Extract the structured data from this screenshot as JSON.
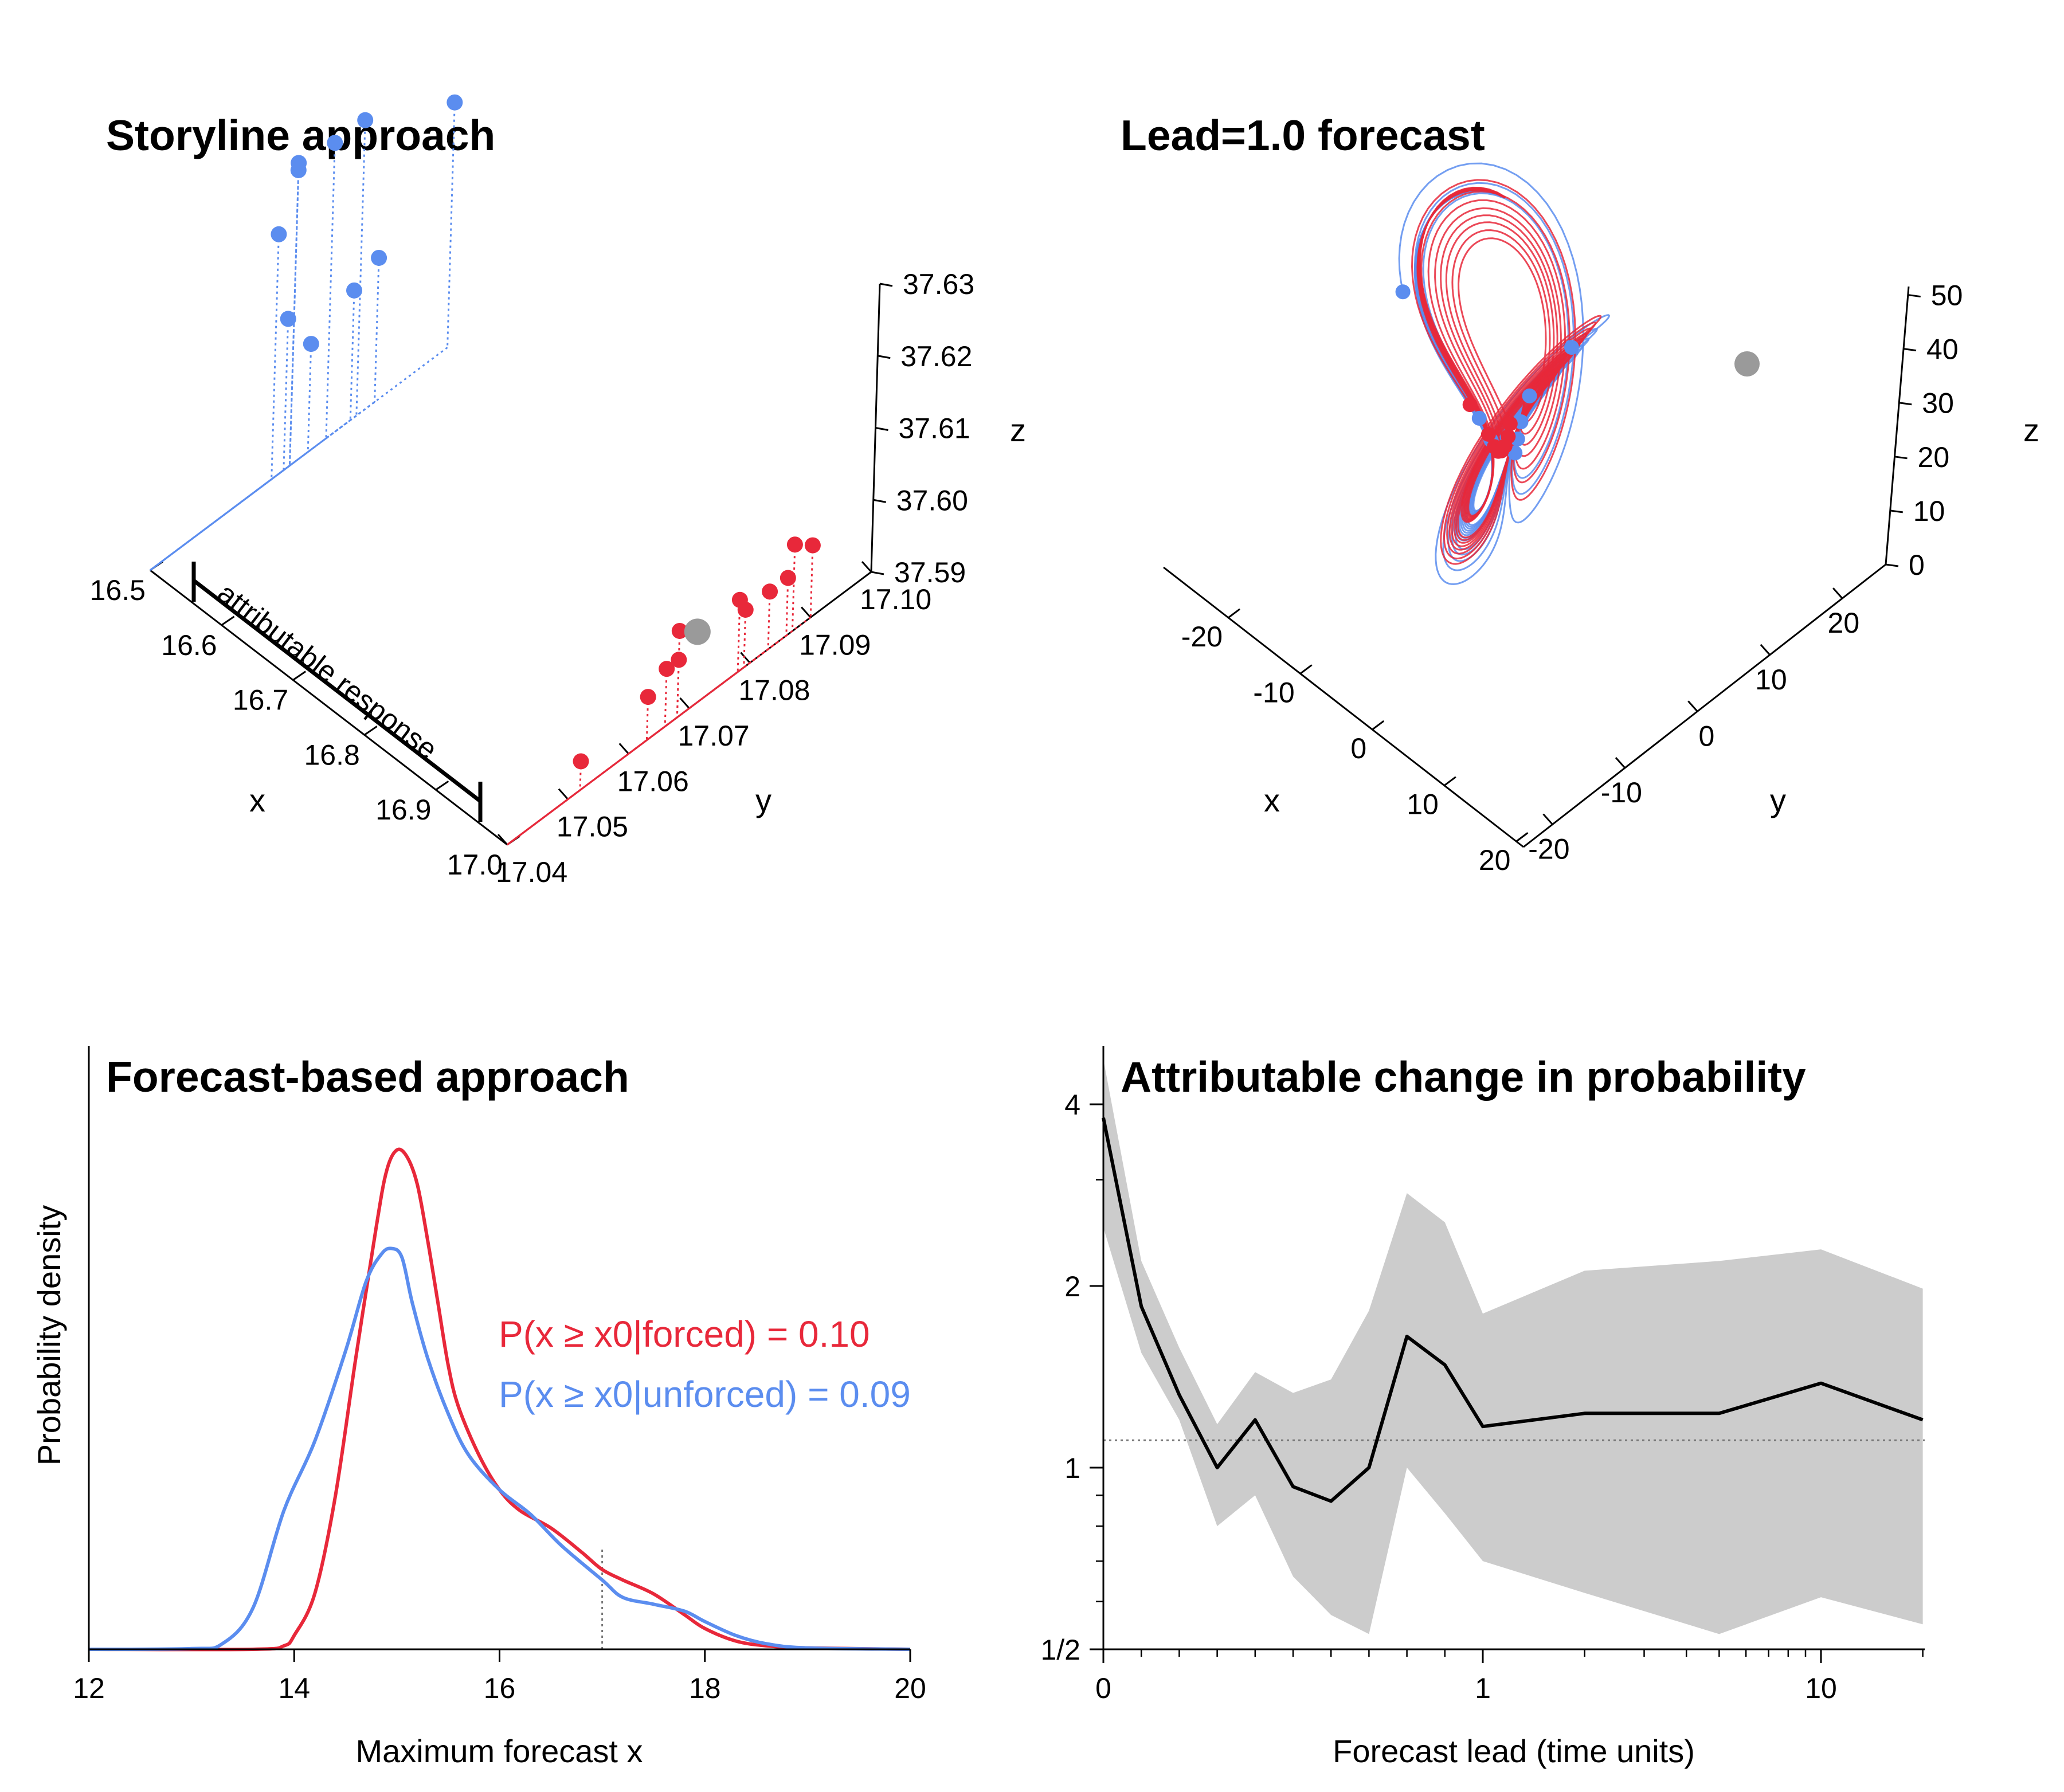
{
  "colors": {
    "forced": "#e8283a",
    "unforced": "#5b8def",
    "initial": "#9a9a9a",
    "band": "#cccccc",
    "line": "#000000"
  },
  "chart_data": [
    {
      "type": "scatter",
      "title": "Storyline approach",
      "projection": "3d",
      "xlabel": "x",
      "ylabel": "y",
      "zlabel": "z",
      "xticks": [
        "16.5",
        "16.6",
        "16.7",
        "16.8",
        "16.9",
        "17.0"
      ],
      "yticks": [
        "17.04",
        "17.05",
        "17.06",
        "17.07",
        "17.08",
        "17.09",
        "17.10"
      ],
      "zticks": [
        "37.59",
        "37.60",
        "37.61",
        "37.62",
        "37.63"
      ],
      "xlim": [
        16.5,
        17.0
      ],
      "ylim": [
        17.04,
        17.1
      ],
      "zlim": [
        37.59,
        37.63
      ],
      "annotation": "attributable response",
      "series": [
        {
          "name": "unforced",
          "color": "unforced",
          "points": [
            {
              "x": 16.5,
              "y": 17.06,
              "z": 37.624
            },
            {
              "x": 16.5,
              "y": 17.063,
              "z": 37.631
            },
            {
              "x": 16.5,
              "y": 17.063,
              "z": 37.632
            },
            {
              "x": 16.5,
              "y": 17.069,
              "z": 37.631
            },
            {
              "x": 16.5,
              "y": 17.074,
              "z": 37.631
            },
            {
              "x": 16.5,
              "y": 17.089,
              "z": 37.624
            },
            {
              "x": 16.5,
              "y": 17.062,
              "z": 37.611
            },
            {
              "x": 16.5,
              "y": 17.066,
              "z": 37.605
            },
            {
              "x": 16.5,
              "y": 17.073,
              "z": 37.608
            },
            {
              "x": 16.5,
              "y": 17.077,
              "z": 37.61
            }
          ]
        },
        {
          "name": "forced",
          "color": "forced",
          "points": [
            {
              "x": 17.0,
              "y": 17.052,
              "z": 37.594
            },
            {
              "x": 17.0,
              "y": 17.063,
              "z": 37.596
            },
            {
              "x": 17.0,
              "y": 17.066,
              "z": 37.598
            },
            {
              "x": 17.0,
              "y": 17.068,
              "z": 37.598
            },
            {
              "x": 17.0,
              "y": 17.068,
              "z": 37.602
            },
            {
              "x": 17.0,
              "y": 17.078,
              "z": 37.6
            },
            {
              "x": 17.0,
              "y": 17.079,
              "z": 37.598
            },
            {
              "x": 17.0,
              "y": 17.083,
              "z": 37.598
            },
            {
              "x": 17.0,
              "y": 17.087,
              "z": 37.602
            },
            {
              "x": 17.0,
              "y": 17.09,
              "z": 37.6
            },
            {
              "x": 17.0,
              "y": 17.086,
              "z": 37.598
            }
          ]
        },
        {
          "name": "initial",
          "color": "initial",
          "points": [
            {
              "x": 17.0,
              "y": 17.071,
              "z": 37.6
            }
          ]
        }
      ]
    },
    {
      "type": "line",
      "title": "Lead=1.0 forecast",
      "projection": "3d",
      "xlabel": "x",
      "ylabel": "y",
      "zlabel": "z",
      "xticks": [
        "-20",
        "-10",
        "0",
        "10",
        "20"
      ],
      "yticks": [
        "-20",
        "-10",
        "0",
        "10",
        "20"
      ],
      "zticks": [
        "0",
        "10",
        "20",
        "30",
        "40",
        "50"
      ],
      "xlim": [
        -25,
        25
      ],
      "ylim": [
        -25,
        25
      ],
      "zlim": [
        0,
        50
      ],
      "series": [
        {
          "name": "unforced",
          "color": "unforced",
          "trajectories": 8
        },
        {
          "name": "forced",
          "color": "forced",
          "trajectories": 8
        }
      ],
      "endpoints": {
        "initial": {
          "x": 17.0,
          "y": 17.07,
          "z": 37.6
        }
      }
    },
    {
      "type": "line",
      "title": "Forecast-based approach",
      "xlabel": "Maximum forecast x",
      "ylabel": "Probability density",
      "xlim": [
        12,
        20
      ],
      "xticks": [
        "12",
        "14",
        "16",
        "18",
        "20"
      ],
      "threshold_x0": 17.0,
      "annotation_forced": "P(x ≥ x0|forced) = 0.10",
      "annotation_unforced": "P(x ≥ x0|unforced) = 0.09",
      "series": [
        {
          "name": "forced",
          "color": "forced",
          "x": [
            12.0,
            13.6,
            13.9,
            14.0,
            14.2,
            14.4,
            14.6,
            14.8,
            14.9,
            15.0,
            15.1,
            15.2,
            15.3,
            15.4,
            15.5,
            15.6,
            15.8,
            16.0,
            16.2,
            16.5,
            16.8,
            17.0,
            17.2,
            17.5,
            17.8,
            18.0,
            18.3,
            18.6,
            19.0,
            20.0
          ],
          "y": [
            0.0,
            0.0,
            0.005,
            0.02,
            0.08,
            0.22,
            0.42,
            0.61,
            0.69,
            0.72,
            0.71,
            0.67,
            0.59,
            0.5,
            0.41,
            0.35,
            0.28,
            0.23,
            0.2,
            0.175,
            0.14,
            0.115,
            0.1,
            0.08,
            0.05,
            0.03,
            0.012,
            0.005,
            0.002,
            0.0
          ]
        },
        {
          "name": "unforced",
          "color": "unforced",
          "x": [
            12.0,
            13.0,
            13.3,
            13.6,
            13.9,
            14.2,
            14.5,
            14.7,
            14.85,
            14.95,
            15.05,
            15.15,
            15.3,
            15.5,
            15.7,
            16.0,
            16.3,
            16.6,
            17.0,
            17.2,
            17.5,
            17.8,
            18.0,
            18.3,
            18.6,
            19.0,
            20.0
          ],
          "y": [
            0.0,
            0.001,
            0.008,
            0.06,
            0.2,
            0.3,
            0.43,
            0.53,
            0.57,
            0.578,
            0.565,
            0.5,
            0.42,
            0.34,
            0.28,
            0.23,
            0.195,
            0.15,
            0.1,
            0.075,
            0.065,
            0.055,
            0.04,
            0.02,
            0.008,
            0.002,
            0.0
          ]
        }
      ]
    },
    {
      "type": "area",
      "title": "Attributable change in probability",
      "xlabel": "Forecast lead (time units)",
      "xscale": "symlog",
      "yscale": "log2",
      "xticks": [
        "0",
        "1",
        "10"
      ],
      "yticks": [
        "1/2",
        "1",
        "2",
        "4"
      ],
      "xlim": [
        0,
        20
      ],
      "ylim": [
        0.5,
        4.8
      ],
      "reference_y": 1.11,
      "series": [
        {
          "name": "median",
          "color": "line",
          "x": [
            0,
            0.1,
            0.2,
            0.3,
            0.4,
            0.5,
            0.6,
            0.7,
            0.8,
            0.9,
            1,
            2,
            5,
            10,
            20
          ],
          "y": [
            3.8,
            1.85,
            1.32,
            1.0,
            1.2,
            0.93,
            0.88,
            1.0,
            1.65,
            1.48,
            1.17,
            1.23,
            1.23,
            1.38,
            1.2
          ]
        },
        {
          "name": "upper",
          "color": "band",
          "x": [
            0,
            0.1,
            0.2,
            0.3,
            0.4,
            0.5,
            0.6,
            0.7,
            0.8,
            0.9,
            1,
            2,
            5,
            10,
            20
          ],
          "y": [
            4.75,
            2.2,
            1.58,
            1.18,
            1.44,
            1.33,
            1.4,
            1.82,
            2.85,
            2.55,
            1.8,
            2.12,
            2.2,
            2.3,
            1.98
          ]
        },
        {
          "name": "lower",
          "color": "band",
          "x": [
            0,
            0.1,
            0.2,
            0.3,
            0.4,
            0.5,
            0.6,
            0.7,
            0.8,
            0.9,
            1,
            2,
            5,
            10,
            20
          ],
          "y": [
            2.5,
            1.55,
            1.2,
            0.8,
            0.9,
            0.66,
            0.57,
            0.53,
            1.0,
            0.84,
            0.7,
            0.62,
            0.53,
            0.61,
            0.55
          ]
        }
      ]
    }
  ]
}
